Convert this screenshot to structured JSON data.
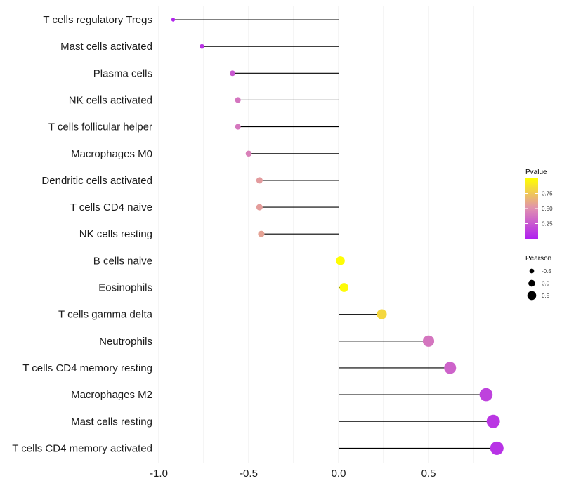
{
  "chart_data": {
    "type": "lollipop",
    "categories": [
      "T cells regulatory  Tregs",
      "Mast cells activated",
      "Plasma cells",
      "NK cells activated",
      "T cells follicular helper",
      "Macrophages M0",
      "Dendritic cells activated",
      "T cells CD4 naive",
      "NK cells resting",
      "B cells naive",
      "Eosinophils",
      "T cells gamma delta",
      "Neutrophils",
      "T cells CD4 memory resting",
      "Macrophages M2",
      "Mast cells resting",
      "T cells CD4 memory activated"
    ],
    "values": [
      -0.92,
      -0.76,
      -0.59,
      -0.56,
      -0.56,
      -0.5,
      -0.44,
      -0.44,
      -0.43,
      0.01,
      0.03,
      0.24,
      0.5,
      0.62,
      0.82,
      0.86,
      0.88
    ],
    "pvalues": [
      0.02,
      0.09,
      0.25,
      0.38,
      0.39,
      0.43,
      0.55,
      0.56,
      0.58,
      0.99,
      0.98,
      0.82,
      0.38,
      0.3,
      0.15,
      0.1,
      0.08
    ],
    "xlim": [
      -1.0,
      0.9
    ],
    "xticks": [
      -1.0,
      -0.5,
      0.0,
      0.5
    ],
    "xtick_labels": [
      "-1.0",
      "-0.5",
      "0.0",
      "0.5"
    ],
    "color_legend": {
      "title": "Pvalue",
      "range": [
        0.0,
        1.0
      ],
      "ticks": [
        0.75,
        0.5,
        0.25
      ],
      "tick_labels": [
        "0.75",
        "0.50",
        "0.25"
      ],
      "low_color": "#b020f0",
      "mid_color": "#e090b0",
      "high_color": "#ffff00"
    },
    "size_legend": {
      "title": "Pearson",
      "values": [
        -0.5,
        0.0,
        0.5
      ],
      "labels": [
        "-0.5",
        "0.0",
        "0.5"
      ]
    },
    "grid": true,
    "stem_color": "#000000"
  }
}
